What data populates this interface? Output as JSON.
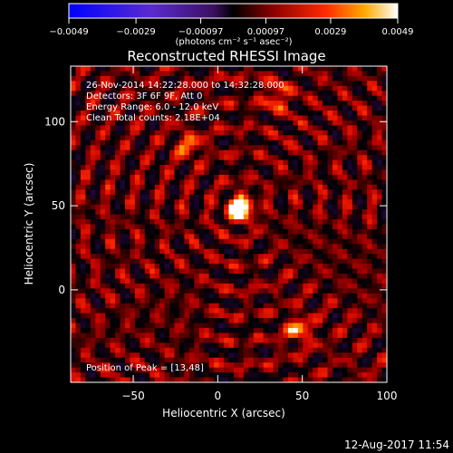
{
  "chart_data": {
    "type": "heatmap",
    "title": "Reconstructed RHESSI Image",
    "xlabel": "Heliocentric X (arcsec)",
    "ylabel": "Heliocentric Y (arcsec)",
    "xlim": [
      -87,
      100
    ],
    "ylim": [
      -55,
      133
    ],
    "x_ticks": [
      -50,
      0,
      50,
      100
    ],
    "x_tick_labels": [
      "−50",
      "0",
      "50",
      "100"
    ],
    "y_ticks": [
      0,
      50,
      100
    ],
    "y_tick_labels": [
      "0",
      "50",
      "100"
    ],
    "colorbar": {
      "min": -0.0049,
      "max": 0.0049,
      "ticks": [
        -0.0049,
        -0.0029,
        -0.00097,
        0.00097,
        0.0029,
        0.0049
      ],
      "tick_labels": [
        "−0.0049",
        "−0.0029",
        "−0.00097",
        "0.00097",
        "0.0029",
        "0.0049"
      ],
      "unit_label": "(photons cm⁻² s⁻¹ asec⁻²)"
    },
    "info_lines": [
      "26-Nov-2014 14:22:28.000 to 14:32:28.000",
      "Detectors: 3F 6F 9F, Att 0",
      "Energy Range: 6.0 - 12.0 keV",
      "Clean     Total counts: 2.18E+04"
    ],
    "peak_label": "Position of Peak = [13,48]",
    "peak": [
      13,
      48
    ],
    "secondary_sources": [
      {
        "x": 48,
        "y": -24,
        "relative_intensity": 0.55
      },
      {
        "x": -17,
        "y": 86,
        "relative_intensity": 0.45
      },
      {
        "x": 35,
        "y": 115,
        "relative_intensity": 0.45
      }
    ],
    "grid": false,
    "legend": "none"
  },
  "footer": {
    "timestamp": "12-Aug-2017 11:54"
  }
}
